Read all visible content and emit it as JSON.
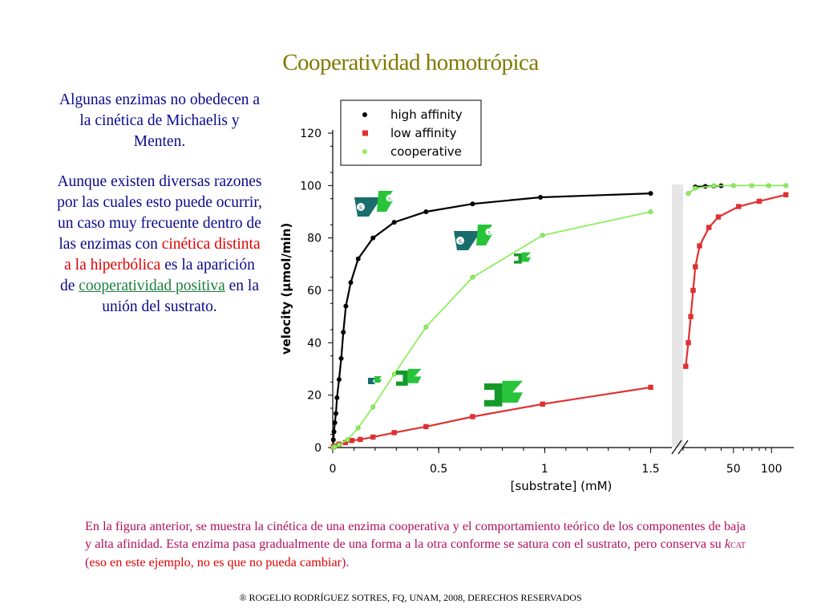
{
  "slide": {
    "title": "Cooperatividad homotrópica",
    "left_p1": "Algunas enzimas no obedecen a la cinética de Michaelis y Menten.",
    "left_p2_a": "Aunque existen diversas razones por las cuales esto puede ocurrir, un caso muy frecuente dentro de las enzimas con",
    "left_p2_red": "cinética distinta a la hiperbólica",
    "left_p2_b": "es la aparición de",
    "left_p2_link": "cooperatividad positiva",
    "left_p2_c": "en la unión del sustrato.",
    "caption_a": "En la figura anterior, se muestra la cinética de una enzima cooperativa y el comportamiento teórico de los componentes de baja y alta afinidad. Esta enzima pasa gradualmente de una forma a la otra conforme se satura con el sustrato, pero conserva su",
    "caption_k": "k",
    "caption_sub": "CAT",
    "caption_red": "eso en este ejemplo, no es que no pueda cambiar",
    "caption_open": " (",
    "caption_close": ").",
    "footer": "® ROGELIO RODRÍGUEZ SOTRES, FQ, UNAM, 2008, DERECHOS RESERVADOS"
  },
  "colors": {
    "title": "#7f7a00",
    "left_text": "#0a0a8c",
    "highlight_red": "#e00000",
    "link_green": "#1b7f3d",
    "caption": "#b0105a",
    "high_affinity": "#000000",
    "low_affinity": "#e03030",
    "cooperative": "#90ee60",
    "teal_shape": "#1a6d6d",
    "green_shape": "#27c43a",
    "dark_green_shape": "#139a28"
  },
  "chart_data": {
    "type": "scatter",
    "xlabel": "[substrate] (mM)",
    "ylabel": "velocity (µmol/min)",
    "xlim": [
      0,
      1.6
    ],
    "xlim_broken": [
      20,
      150
    ],
    "ylim": [
      0,
      120
    ],
    "x_ticks": [
      "0",
      "0.5",
      "1",
      "1.5"
    ],
    "x_ticks_broken": [
      "50",
      "100"
    ],
    "y_ticks": [
      "0",
      "20",
      "40",
      "60",
      "80",
      "100",
      "120"
    ],
    "legend_position": "top-left",
    "grid": false,
    "series": [
      {
        "name": "high affinity",
        "color": "#000000",
        "marker": "circle",
        "points": [
          [
            0.003,
            3
          ],
          [
            0.006,
            6
          ],
          [
            0.01,
            9.5
          ],
          [
            0.015,
            13
          ],
          [
            0.02,
            19
          ],
          [
            0.03,
            26
          ],
          [
            0.04,
            34
          ],
          [
            0.05,
            44
          ],
          [
            0.062,
            54
          ],
          [
            0.085,
            63
          ],
          [
            0.12,
            72
          ],
          [
            0.19,
            80
          ],
          [
            0.29,
            86
          ],
          [
            0.44,
            90
          ],
          [
            0.66,
            93
          ],
          [
            0.98,
            95.5
          ],
          [
            1.5,
            97
          ]
        ],
        "points_broken": [
          [
            25,
            99.5
          ],
          [
            30,
            99.7
          ],
          [
            35,
            99.8
          ],
          [
            40,
            99.9
          ]
        ]
      },
      {
        "name": "low affinity",
        "color": "#e03030",
        "marker": "square",
        "points": [
          [
            0.003,
            0.3
          ],
          [
            0.01,
            0.6
          ],
          [
            0.03,
            1.3
          ],
          [
            0.06,
            1.9
          ],
          [
            0.09,
            2.7
          ],
          [
            0.13,
            3.1
          ],
          [
            0.19,
            4
          ],
          [
            0.29,
            5.7
          ],
          [
            0.44,
            8
          ],
          [
            0.66,
            11.8
          ],
          [
            0.99,
            16.6
          ],
          [
            1.5,
            23
          ]
        ],
        "points_broken": [
          [
            21,
            31
          ],
          [
            22,
            40
          ],
          [
            23,
            50
          ],
          [
            24,
            60
          ],
          [
            25,
            69
          ],
          [
            27,
            77
          ],
          [
            32,
            84
          ],
          [
            38,
            88
          ],
          [
            55,
            92
          ],
          [
            80,
            94
          ],
          [
            130,
            96.5
          ]
        ]
      },
      {
        "name": "cooperative",
        "color": "#90ee60",
        "marker": "circle",
        "points": [
          [
            0.003,
            0.1
          ],
          [
            0.01,
            0.3
          ],
          [
            0.03,
            1
          ],
          [
            0.07,
            3
          ],
          [
            0.12,
            7.5
          ],
          [
            0.19,
            15.5
          ],
          [
            0.29,
            28
          ],
          [
            0.44,
            46
          ],
          [
            0.66,
            65
          ],
          [
            0.99,
            81
          ],
          [
            1.5,
            90
          ]
        ],
        "points_broken": [
          [
            22,
            97
          ],
          [
            25,
            99
          ],
          [
            35,
            99.9
          ],
          [
            50,
            100
          ],
          [
            70,
            100
          ],
          [
            95,
            100
          ],
          [
            130,
            100
          ]
        ]
      }
    ]
  },
  "icons": [
    "enzyme-teal-substrate-icon",
    "enzyme-green-substrate-icon",
    "enzyme-small-green-icon",
    "enzyme-dark-green-icon"
  ]
}
